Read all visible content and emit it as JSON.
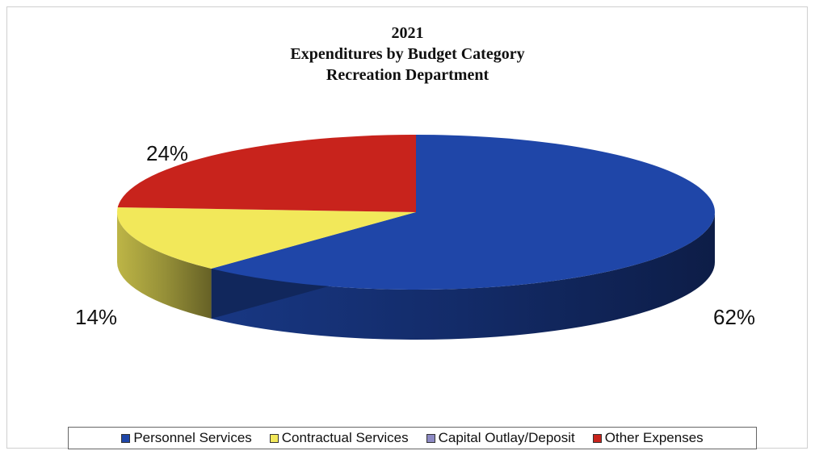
{
  "chart_data": {
    "type": "pie",
    "title": [
      "2021",
      "Expenditures by Budget Category",
      "Recreation Department"
    ],
    "slices": [
      {
        "name": "Personnel Services",
        "value": 62,
        "label": "62%",
        "color": "#1f46a8",
        "shown": true
      },
      {
        "name": "Contractual Services",
        "value": 14,
        "label": "14%",
        "color": "#f2e85a",
        "shown": true
      },
      {
        "name": "Capital Outlay/Deposit",
        "value": 0,
        "label": "",
        "color": "#8d8ac4",
        "shown": false
      },
      {
        "name": "Other Expenses",
        "value": 24,
        "label": "24%",
        "color": "#c8231c",
        "shown": true
      }
    ],
    "legend_position": "bottom",
    "style": "3d-pie"
  }
}
